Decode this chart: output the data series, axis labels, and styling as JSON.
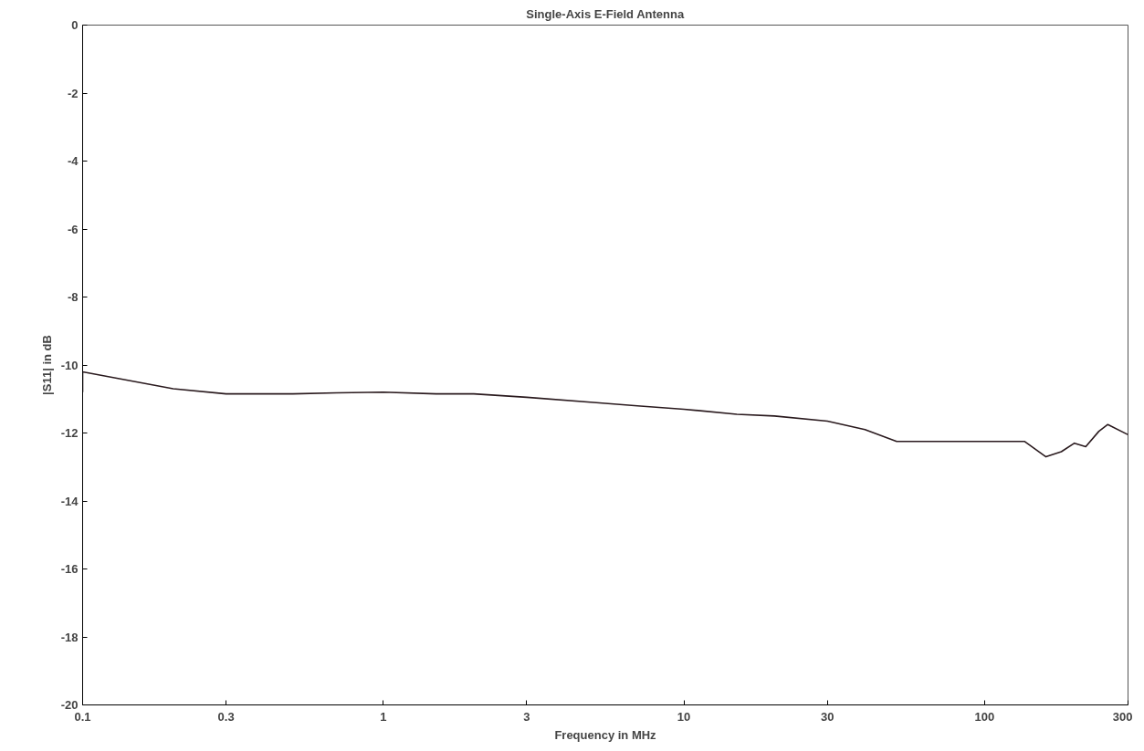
{
  "chart_data": {
    "type": "line",
    "title": "Single-Axis E-Field Antenna",
    "xlabel": "Frequency in MHz",
    "ylabel": "|S11| in dB",
    "x": [
      0.1,
      0.1,
      0.2,
      0.3,
      0.4,
      0.5,
      0.7,
      1,
      1.5,
      2,
      3,
      5,
      7,
      10,
      15,
      20,
      30,
      40,
      51,
      136,
      160,
      180,
      199,
      217,
      240,
      257,
      300
    ],
    "series": [
      {
        "color": "#2a1a1e",
        "values": [
          -10.8,
          -10.2,
          -10.7,
          -10.85,
          -10.85,
          -10.85,
          -10.82,
          -10.8,
          -10.85,
          -10.85,
          -10.95,
          -11.1,
          -11.2,
          -11.3,
          -11.45,
          -11.5,
          -11.65,
          -11.9,
          -12.25,
          -12.25,
          -12.7,
          -12.55,
          -12.3,
          -12.4,
          -11.95,
          -11.75,
          -12.05
        ]
      }
    ],
    "log": "x",
    "xlim": [
      0.1,
      300
    ],
    "ylim": [
      -20,
      0
    ],
    "xticks": [
      0.1,
      0.3,
      1,
      3,
      10,
      30,
      100,
      300
    ],
    "yticks": [
      -20,
      -18,
      -16,
      -14,
      -12,
      -10,
      -8,
      -6,
      -4,
      -2,
      0
    ],
    "grid": false,
    "marker": "none",
    "line_style": "solid"
  }
}
